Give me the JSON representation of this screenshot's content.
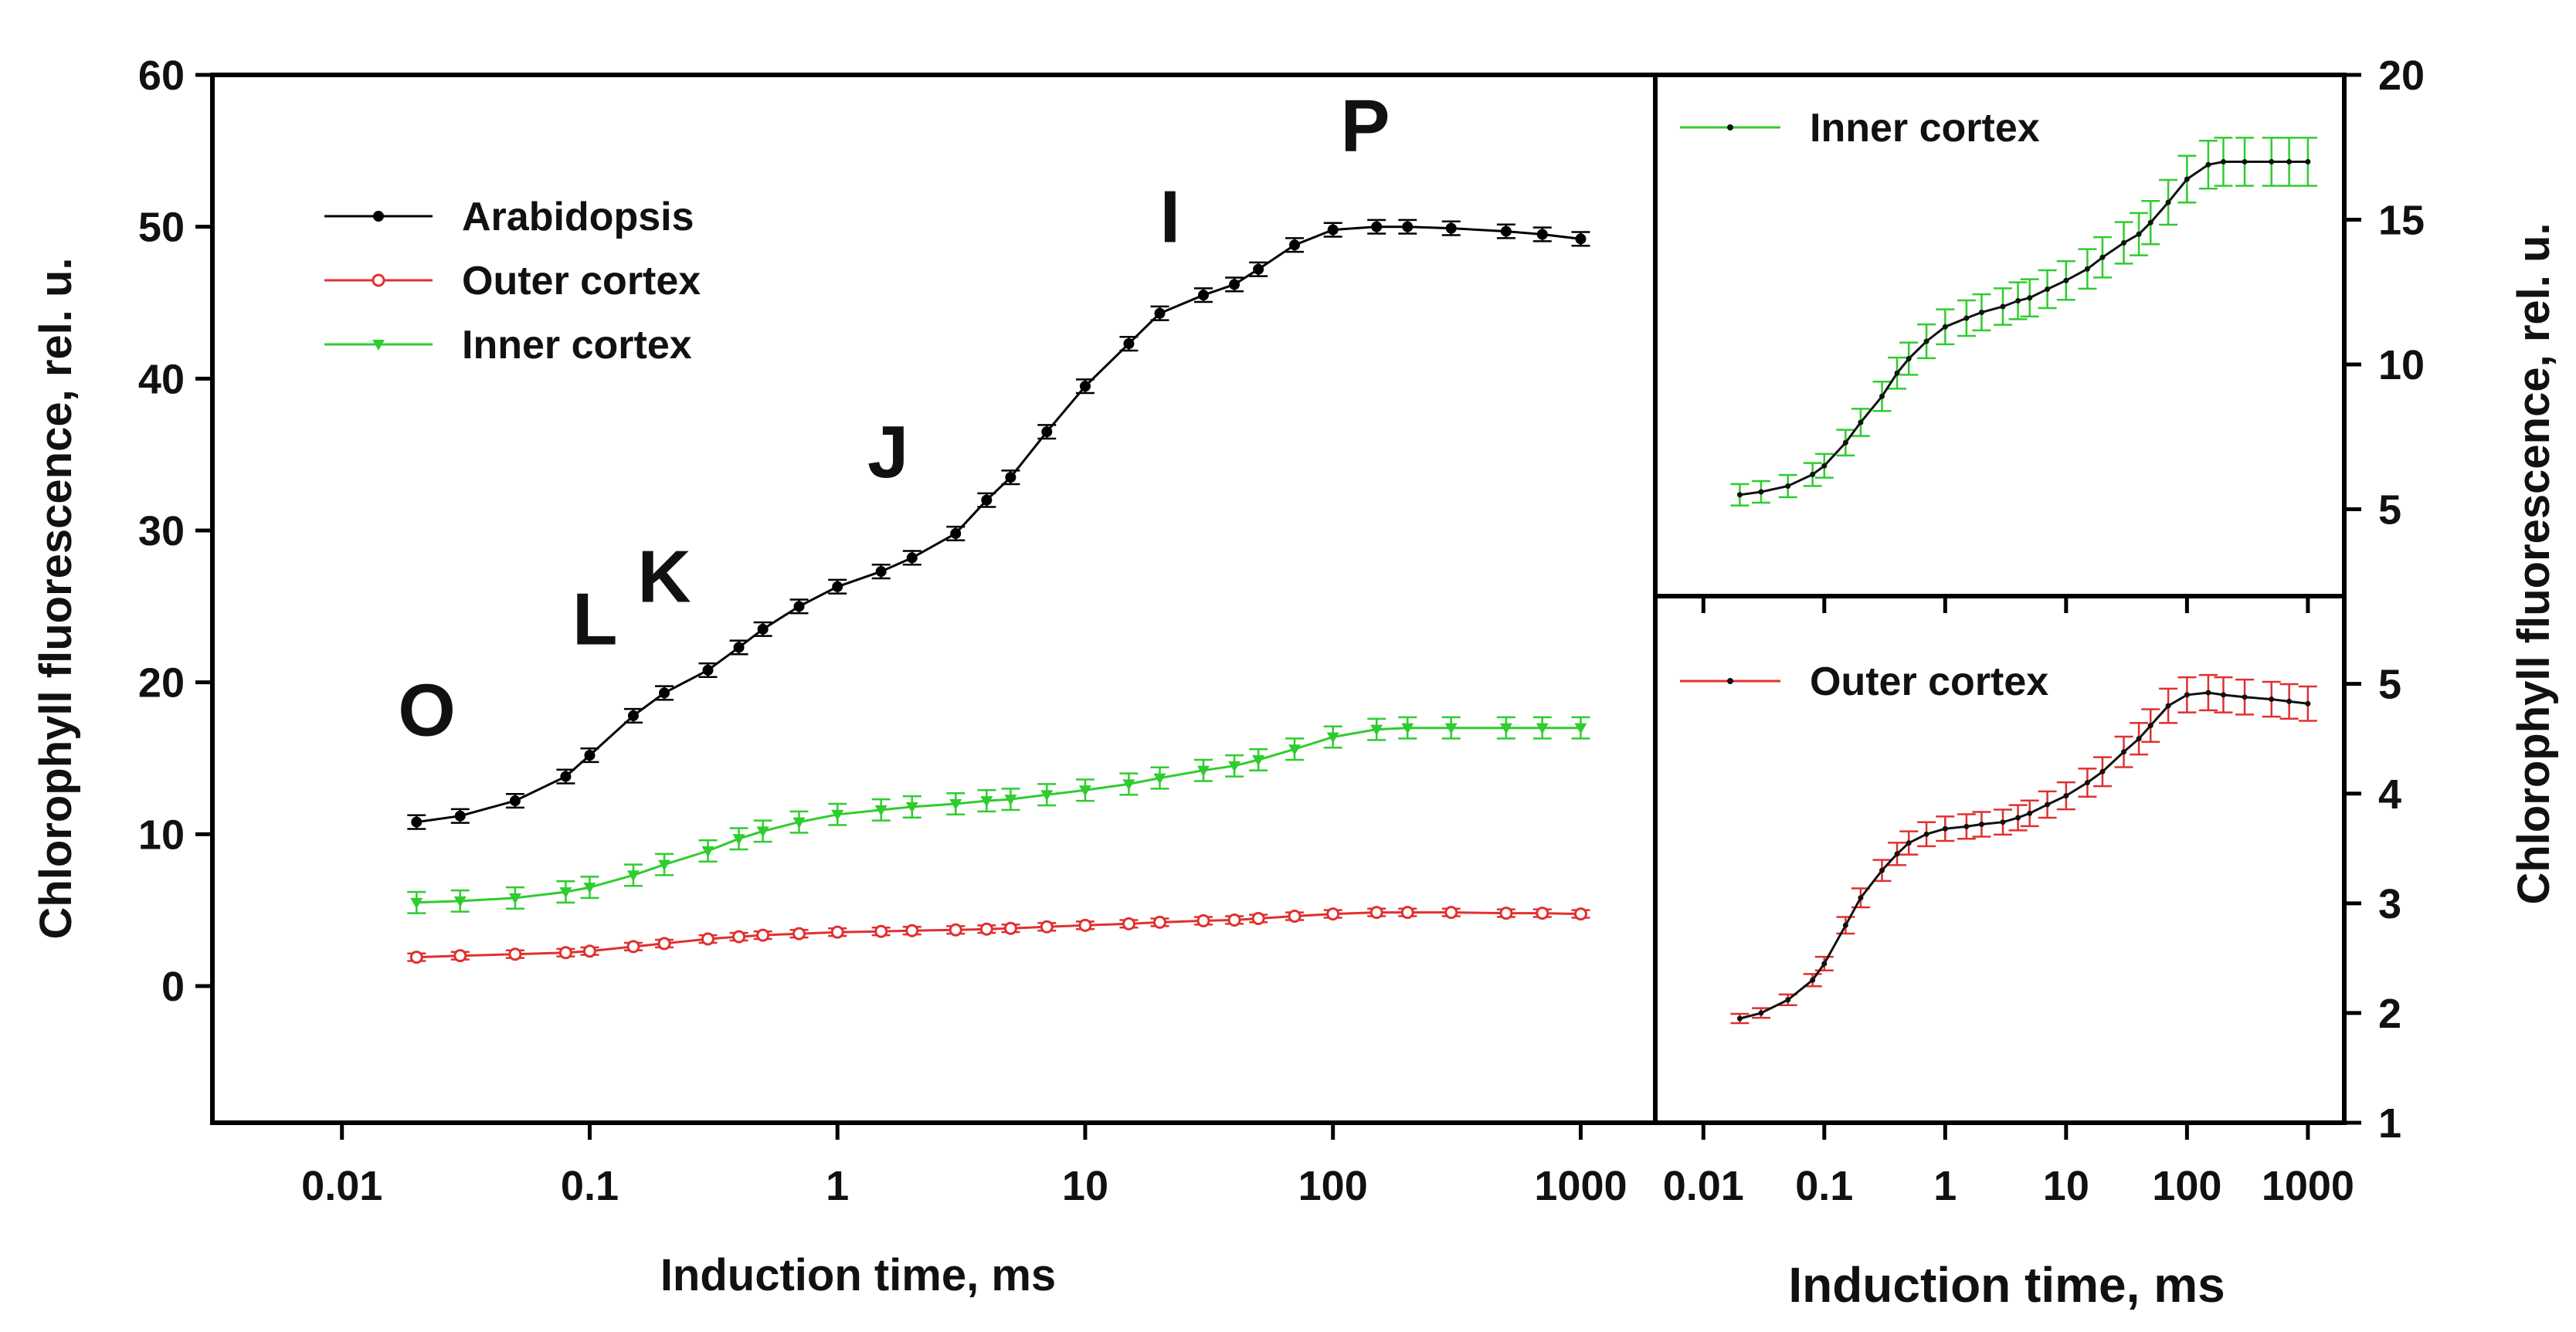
{
  "chart_data": [
    {
      "id": "main",
      "type": "line",
      "xscale": "log",
      "xlim": [
        0.003,
        2000
      ],
      "ylim": [
        -9,
        60
      ],
      "xticks": [
        0.01,
        0.1,
        1,
        10,
        100,
        1000
      ],
      "xtick_labels": [
        "0.01",
        "0.1",
        "1",
        "10",
        "100",
        "1000"
      ],
      "yticks": [
        0,
        10,
        20,
        30,
        40,
        50,
        60
      ],
      "ytick_labels": [
        "0",
        "10",
        "20",
        "30",
        "40",
        "50",
        "60"
      ],
      "xlabel": "Induction time, ms",
      "ylabel": "Chlorophyll fluorescence, rel. u.",
      "legend_position": "top-left",
      "series": [
        {
          "name": "Arabidopsis",
          "color": "#000000",
          "marker": "filled-circle",
          "x": [
            0.02,
            0.03,
            0.05,
            0.08,
            0.1,
            0.15,
            0.2,
            0.3,
            0.4,
            0.5,
            0.7,
            1,
            1.5,
            2,
            3,
            4,
            5,
            7,
            10,
            15,
            20,
            30,
            40,
            50,
            70,
            100,
            150,
            200,
            300,
            500,
            700,
            1000
          ],
          "y": [
            10.8,
            11.2,
            12.2,
            13.8,
            15.2,
            17.8,
            19.3,
            20.8,
            22.3,
            23.5,
            25.0,
            26.3,
            27.3,
            28.2,
            29.8,
            32.0,
            33.5,
            36.5,
            39.5,
            42.3,
            44.3,
            45.5,
            46.2,
            47.2,
            48.8,
            49.8,
            50.0,
            50.0,
            49.9,
            49.7,
            49.5,
            49.2
          ]
        },
        {
          "name": "Outer cortex",
          "color": "#e03030",
          "marker": "open-circle",
          "x": [
            0.02,
            0.03,
            0.05,
            0.08,
            0.1,
            0.15,
            0.2,
            0.3,
            0.4,
            0.5,
            0.7,
            1,
            1.5,
            2,
            3,
            4,
            5,
            7,
            10,
            15,
            20,
            30,
            40,
            50,
            70,
            100,
            150,
            200,
            300,
            500,
            700,
            1000
          ],
          "y": [
            1.9,
            2.0,
            2.1,
            2.2,
            2.3,
            2.6,
            2.8,
            3.1,
            3.25,
            3.35,
            3.45,
            3.55,
            3.6,
            3.65,
            3.7,
            3.75,
            3.8,
            3.9,
            4.0,
            4.1,
            4.2,
            4.3,
            4.35,
            4.45,
            4.6,
            4.75,
            4.85,
            4.85,
            4.85,
            4.8,
            4.8,
            4.75
          ]
        },
        {
          "name": "Inner cortex",
          "color": "#2fcc2f",
          "marker": "filled-triangle-down",
          "x": [
            0.02,
            0.03,
            0.05,
            0.08,
            0.1,
            0.15,
            0.2,
            0.3,
            0.4,
            0.5,
            0.7,
            1,
            1.5,
            2,
            3,
            4,
            5,
            7,
            10,
            15,
            20,
            30,
            40,
            50,
            70,
            100,
            150,
            200,
            300,
            500,
            700,
            1000
          ],
          "y": [
            5.5,
            5.6,
            5.8,
            6.2,
            6.5,
            7.3,
            8.0,
            8.9,
            9.7,
            10.2,
            10.8,
            11.3,
            11.6,
            11.8,
            12.0,
            12.2,
            12.3,
            12.6,
            12.9,
            13.3,
            13.7,
            14.2,
            14.5,
            14.9,
            15.6,
            16.4,
            16.9,
            17.0,
            17.0,
            17.0,
            17.0,
            17.0
          ]
        }
      ],
      "annotations": [
        {
          "text": "O",
          "x": 0.022,
          "y": 16.5
        },
        {
          "text": "L",
          "x": 0.105,
          "y": 22.5
        },
        {
          "text": "K",
          "x": 0.2,
          "y": 25.3
        },
        {
          "text": "J",
          "x": 1.6,
          "y": 33.5
        },
        {
          "text": "I",
          "x": 22,
          "y": 49.0
        },
        {
          "text": "P",
          "x": 135,
          "y": 55.0
        }
      ]
    },
    {
      "id": "inner",
      "type": "line",
      "xscale": "log",
      "xlim": [
        0.004,
        2000
      ],
      "ylim": [
        2.0,
        20
      ],
      "xticks": [
        0.01,
        0.1,
        1,
        10,
        100,
        1000
      ],
      "yticks": [
        5,
        10,
        15,
        20
      ],
      "ytick_labels": [
        "5",
        "10",
        "15",
        "20"
      ],
      "legend_position": "top-left",
      "series": [
        {
          "name": "Inner cortex",
          "color": "#2fcc2f",
          "line_color": "#111111",
          "x": [
            0.02,
            0.03,
            0.05,
            0.08,
            0.1,
            0.15,
            0.2,
            0.3,
            0.4,
            0.5,
            0.7,
            1,
            1.5,
            2,
            3,
            4,
            5,
            7,
            10,
            15,
            20,
            30,
            40,
            50,
            70,
            100,
            150,
            200,
            300,
            500,
            700,
            1000
          ],
          "y": [
            5.5,
            5.6,
            5.8,
            6.2,
            6.5,
            7.3,
            8.0,
            8.9,
            9.7,
            10.2,
            10.8,
            11.3,
            11.6,
            11.8,
            12.0,
            12.2,
            12.3,
            12.6,
            12.9,
            13.3,
            13.7,
            14.2,
            14.5,
            14.9,
            15.6,
            16.4,
            16.9,
            17.0,
            17.0,
            17.0,
            17.0,
            17.0
          ]
        }
      ]
    },
    {
      "id": "outer",
      "type": "line",
      "xscale": "log",
      "xlim": [
        0.004,
        2000
      ],
      "ylim": [
        1,
        5.8
      ],
      "xticks": [
        0.01,
        0.1,
        1,
        10,
        100,
        1000
      ],
      "xtick_labels": [
        "0.01",
        "0.1",
        "1",
        "10",
        "100",
        "1000"
      ],
      "yticks": [
        1,
        2,
        3,
        4,
        5
      ],
      "ytick_labels": [
        "1",
        "2",
        "3",
        "4",
        "5"
      ],
      "xlabel": "Induction time, ms",
      "legend_position": "top-left",
      "series": [
        {
          "name": "Outer cortex",
          "color": "#e03030",
          "line_color": "#111111",
          "x": [
            0.02,
            0.03,
            0.05,
            0.08,
            0.1,
            0.15,
            0.2,
            0.3,
            0.4,
            0.5,
            0.7,
            1,
            1.5,
            2,
            3,
            4,
            5,
            7,
            10,
            15,
            20,
            30,
            40,
            50,
            70,
            100,
            150,
            200,
            300,
            500,
            700,
            1000
          ],
          "y": [
            1.95,
            2.0,
            2.12,
            2.3,
            2.45,
            2.8,
            3.05,
            3.3,
            3.45,
            3.55,
            3.63,
            3.68,
            3.7,
            3.72,
            3.74,
            3.78,
            3.82,
            3.9,
            3.98,
            4.1,
            4.2,
            4.38,
            4.5,
            4.62,
            4.8,
            4.9,
            4.92,
            4.9,
            4.88,
            4.86,
            4.84,
            4.82
          ]
        }
      ]
    }
  ],
  "right_axis_label": "Chlorophyll fluorescence, rel. u."
}
